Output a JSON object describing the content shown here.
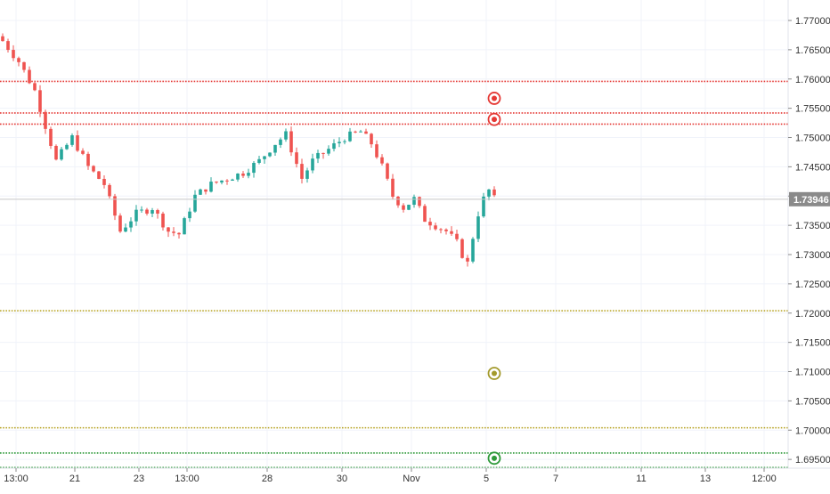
{
  "chart_data": {
    "type": "candlestick",
    "title": "",
    "xlabel": "",
    "ylabel": "",
    "ylim": [
      1.6935,
      1.7735
    ],
    "price_ticks": [
      "1.77000",
      "1.76500",
      "1.76000",
      "1.75500",
      "1.75000",
      "1.74500",
      "1.74000",
      "1.73500",
      "1.73000",
      "1.72500",
      "1.72000",
      "1.71500",
      "1.71000",
      "1.70500",
      "1.70000",
      "1.69500"
    ],
    "time_ticks": [
      {
        "label": "13:00",
        "bar": 3
      },
      {
        "label": "21",
        "bar": 14
      },
      {
        "label": "23",
        "bar": 26
      },
      {
        "label": "13:00",
        "bar": 35
      },
      {
        "label": "28",
        "bar": 50
      },
      {
        "label": "30",
        "bar": 64
      },
      {
        "label": "Nov",
        "bar": 77
      },
      {
        "label": "5",
        "bar": 91
      },
      {
        "label": "7",
        "bar": 104
      },
      {
        "label": "11",
        "bar": 120
      },
      {
        "label": "13",
        "bar": 132
      },
      {
        "label": "12:00",
        "bar": 143
      }
    ],
    "last_price": {
      "label": "1.73946",
      "value": 1.73946
    },
    "bars_per_day_estimate": 6,
    "price_keyframes": [
      [
        0,
        1.7665
      ],
      [
        3,
        1.763
      ],
      [
        6,
        1.758
      ],
      [
        8,
        1.752
      ],
      [
        10,
        1.746
      ],
      [
        13,
        1.75
      ],
      [
        16,
        1.745
      ],
      [
        19,
        1.742
      ],
      [
        22,
        1.734
      ],
      [
        25,
        1.737
      ],
      [
        28,
        1.738
      ],
      [
        31,
        1.734
      ],
      [
        33,
        1.7335
      ],
      [
        36,
        1.74
      ],
      [
        39,
        1.742
      ],
      [
        42,
        1.743
      ],
      [
        45,
        1.744
      ],
      [
        48,
        1.746
      ],
      [
        51,
        1.749
      ],
      [
        53,
        1.7505
      ],
      [
        56,
        1.743
      ],
      [
        58,
        1.746
      ],
      [
        61,
        1.748
      ],
      [
        64,
        1.75
      ],
      [
        67,
        1.751
      ],
      [
        69,
        1.749
      ],
      [
        71,
        1.745
      ],
      [
        73,
        1.74
      ],
      [
        75,
        1.738
      ],
      [
        77,
        1.7395
      ],
      [
        79,
        1.736
      ],
      [
        81,
        1.735
      ],
      [
        83,
        1.734
      ],
      [
        85,
        1.732
      ],
      [
        86,
        1.73
      ],
      [
        87,
        1.7285
      ],
      [
        88,
        1.733
      ],
      [
        89,
        1.737
      ],
      [
        90,
        1.7395
      ],
      [
        91,
        1.741
      ],
      [
        92,
        1.7395
      ]
    ],
    "levels": [
      {
        "name": "resistance-3",
        "value": 1.7596,
        "color": "#e53935",
        "style": "dotted"
      },
      {
        "name": "resistance-2",
        "value": 1.7542,
        "color": "#e53935",
        "style": "dotted"
      },
      {
        "name": "resistance-1",
        "value": 1.7523,
        "color": "#e53935",
        "style": "dotted"
      },
      {
        "name": "middle-upper",
        "value": 1.7204,
        "color": "#b5a01e",
        "style": "dotted"
      },
      {
        "name": "middle-lower",
        "value": 1.7004,
        "color": "#b5a01e",
        "style": "dotted"
      },
      {
        "name": "support-1",
        "value": 1.6961,
        "color": "#2e9a3a",
        "style": "dotted"
      },
      {
        "name": "support-2",
        "value": 1.6936,
        "color": "#2e9a3a",
        "style": "dotted"
      }
    ],
    "markers": [
      {
        "name": "red-marker-1",
        "bar": 92,
        "value": 1.7567,
        "color": "#e53935"
      },
      {
        "name": "red-marker-2",
        "bar": 92,
        "value": 1.7531,
        "color": "#e53935"
      },
      {
        "name": "olive-marker",
        "bar": 92,
        "value": 1.7097,
        "color": "#a39a2c"
      },
      {
        "name": "green-marker",
        "bar": 92,
        "value": 1.6952,
        "color": "#2e9a3a"
      }
    ],
    "colors": {
      "up": "#26a69a",
      "down": "#ef5350",
      "axis_text": "#333333",
      "grid": "#f0f3fa",
      "last_price_line": "#c8c8c8",
      "last_price_bg": "#8a8a8a"
    }
  }
}
